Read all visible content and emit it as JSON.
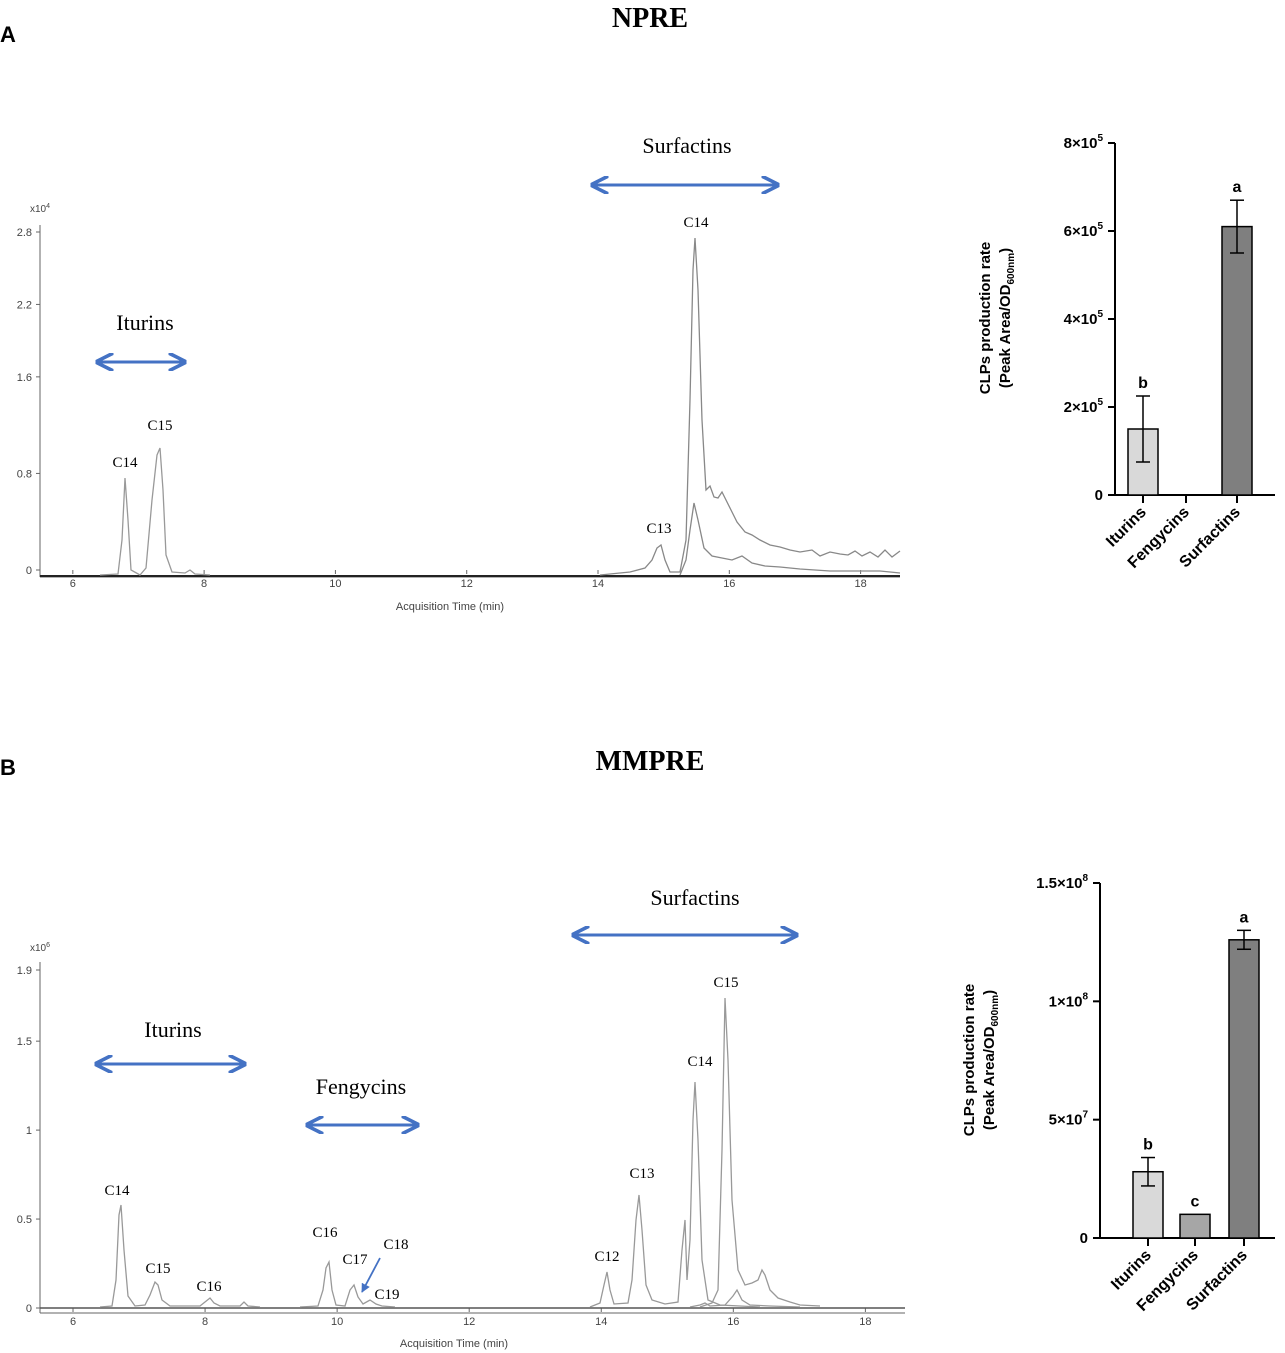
{
  "panels": {
    "a": {
      "letter": "A",
      "title": "NPRE",
      "chromatogram": {
        "scale_label": "x10",
        "scale_exp": "4",
        "y_ticks": [
          "2.8",
          "2.2",
          "1.6",
          "0.8",
          "0"
        ],
        "x_ticks": [
          "6",
          "8",
          "10",
          "12",
          "14",
          "16",
          "18"
        ],
        "x_label": "Acquisition Time (min)",
        "groups": [
          {
            "label": "Iturins"
          },
          {
            "label": "Surfactins"
          }
        ],
        "peaks": [
          "C14",
          "C15",
          "C13",
          "C14"
        ]
      },
      "bar": {
        "ylabel_line1": "CLPs production rate",
        "ylabel_line2": "(Peak Area/OD",
        "ylabel_sub": "600nm",
        "ylabel_close": ")",
        "y_ticks": [
          {
            "base": "8×10",
            "exp": "5"
          },
          {
            "base": "6×10",
            "exp": "5"
          },
          {
            "base": "4×10",
            "exp": "5"
          },
          {
            "base": "2×10",
            "exp": "5"
          },
          {
            "base": "0",
            "exp": ""
          }
        ]
      }
    },
    "b": {
      "letter": "B",
      "title": "MMPRE",
      "chromatogram": {
        "scale_label": "x10",
        "scale_exp": "6",
        "y_ticks": [
          "1.9",
          "1.5",
          "1",
          "0.5",
          "0"
        ],
        "x_ticks": [
          "6",
          "8",
          "10",
          "12",
          "14",
          "16",
          "18"
        ],
        "x_label": "Acquisition Time (min)",
        "groups": [
          {
            "label": "Iturins"
          },
          {
            "label": "Fengycins"
          },
          {
            "label": "Surfactins"
          }
        ],
        "peaks": [
          "C14",
          "C15",
          "C16",
          "C16",
          "C17",
          "C18",
          "C19",
          "C12",
          "C13",
          "C14",
          "C15"
        ]
      },
      "bar": {
        "ylabel_line1": "CLPs production rate",
        "ylabel_line2": "(Peak Area/OD",
        "ylabel_sub": "600nm",
        "ylabel_close": ")",
        "y_ticks": [
          {
            "base": "1.5×10",
            "exp": "8"
          },
          {
            "base": "1×10",
            "exp": "8"
          },
          {
            "base": "5×10",
            "exp": "7"
          },
          {
            "base": "0",
            "exp": ""
          }
        ]
      }
    }
  },
  "chart_data": [
    {
      "type": "line",
      "title": "NPRE",
      "xlabel": "Acquisition Time (min)",
      "ylabel": "x10^4",
      "xlim": [
        5.5,
        18.6
      ],
      "ylim": [
        0,
        2.8
      ],
      "annotations": [
        "Iturins",
        "Surfactins"
      ],
      "peaks": [
        {
          "x": 6.8,
          "y": 0.83,
          "label": "C14"
        },
        {
          "x": 7.35,
          "y": 1.08,
          "label": "C15"
        },
        {
          "x": 15.0,
          "y": 0.2,
          "label": "C13"
        },
        {
          "x": 15.5,
          "y": 2.72,
          "label": "C14"
        }
      ]
    },
    {
      "type": "bar",
      "title": "NPRE",
      "categories": [
        "Iturins",
        "Fengycins",
        "Surfactins"
      ],
      "values": [
        150000,
        0,
        610000
      ],
      "errors": [
        75000,
        0,
        60000
      ],
      "significance": [
        "b",
        "",
        "a"
      ],
      "colors": [
        "#d9d9d9",
        "#bdbdbd",
        "#7f7f7f"
      ],
      "ylabel": "CLPs production rate (Peak Area/OD600nm)",
      "ylim": [
        0,
        800000
      ]
    },
    {
      "type": "line",
      "title": "MMPRE",
      "xlabel": "Acquisition Time (min)",
      "ylabel": "x10^6",
      "xlim": [
        5.5,
        18.6
      ],
      "ylim": [
        0,
        1.9
      ],
      "annotations": [
        "Iturins",
        "Fengycins",
        "Surfactins"
      ],
      "peaks": [
        {
          "x": 6.65,
          "y": 0.57,
          "label": "C14"
        },
        {
          "x": 7.2,
          "y": 0.14,
          "label": "C15"
        },
        {
          "x": 8.1,
          "y": 0.05,
          "label": "C16"
        },
        {
          "x": 9.85,
          "y": 0.27,
          "label": "C16"
        },
        {
          "x": 10.25,
          "y": 0.12,
          "label": "C17"
        },
        {
          "x": 10.35,
          "y": 0.04,
          "label": "C18"
        },
        {
          "x": 10.65,
          "y": 0.02,
          "label": "C19"
        },
        {
          "x": 14.1,
          "y": 0.21,
          "label": "C12"
        },
        {
          "x": 14.6,
          "y": 0.72,
          "label": "C13"
        },
        {
          "x": 15.45,
          "y": 1.25,
          "label": "C14"
        },
        {
          "x": 15.95,
          "y": 1.72,
          "label": "C15"
        }
      ]
    },
    {
      "type": "bar",
      "title": "MMPRE",
      "categories": [
        "Iturins",
        "Fengycins",
        "Surfactins"
      ],
      "values": [
        28000000,
        10000000,
        126000000
      ],
      "errors": [
        6000000,
        0,
        4000000
      ],
      "significance": [
        "b",
        "c",
        "a"
      ],
      "colors": [
        "#d9d9d9",
        "#a6a6a6",
        "#7f7f7f"
      ],
      "ylabel": "CLPs production rate (Peak Area/OD600nm)",
      "ylim": [
        0,
        150000000
      ]
    }
  ]
}
